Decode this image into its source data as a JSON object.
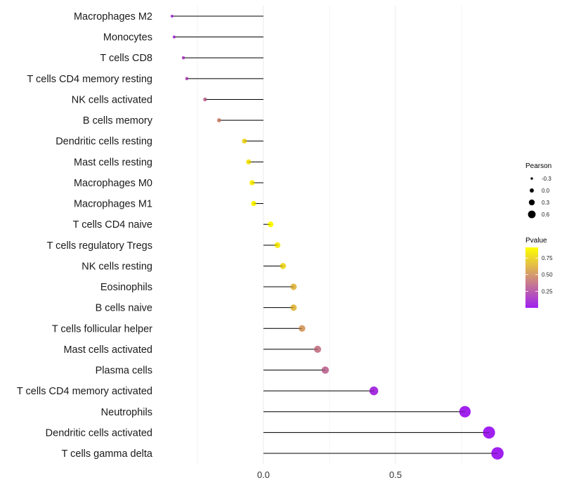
{
  "chart_data": {
    "type": "lollipop",
    "title": "",
    "xlabel": "",
    "ylabel": "",
    "xlim": [
      -0.39,
      1.0
    ],
    "xticks": [
      0.0,
      0.5
    ],
    "xtick_labels": [
      "0.0",
      "0.5"
    ],
    "grid": true,
    "categories": [
      "Macrophages M2",
      "Monocytes",
      "T cells CD8",
      "T cells CD4 memory resting",
      "NK cells activated",
      "B cells memory",
      "Dendritic cells resting",
      "Mast cells resting",
      "Macrophages M0",
      "Macrophages M1",
      "T cells CD4 naive",
      "T cells regulatory  Tregs",
      "NK cells resting",
      "Eosinophils",
      "B cells naive",
      "T cells follicular helper",
      "Mast cells activated",
      "Plasma cells",
      "T cells CD4 memory activated",
      "Neutrophils",
      "Dendritic cells activated",
      "T cells gamma delta"
    ],
    "values": [
      -0.346,
      -0.338,
      -0.303,
      -0.29,
      -0.221,
      -0.168,
      -0.072,
      -0.056,
      -0.043,
      -0.037,
      0.027,
      0.053,
      0.074,
      0.114,
      0.114,
      0.146,
      0.205,
      0.234,
      0.418,
      0.763,
      0.854,
      0.886
    ],
    "pvalues": [
      0.1,
      0.1,
      0.17,
      0.2,
      0.33,
      0.45,
      0.75,
      0.8,
      0.85,
      0.87,
      0.9,
      0.83,
      0.75,
      0.63,
      0.63,
      0.52,
      0.38,
      0.33,
      0.06,
      0.01,
      0.002,
      0.001
    ],
    "legend_size": {
      "title": "Pearson",
      "labels": [
        "-0.3",
        "0.0",
        "0.3",
        "0.6"
      ],
      "values": [
        -0.3,
        0.0,
        0.3,
        0.6
      ]
    },
    "legend_color": {
      "title": "Pvalue",
      "labels": [
        "0.75",
        "0.50",
        "0.25"
      ],
      "values": [
        0.75,
        0.5,
        0.25
      ],
      "range": [
        0,
        0.91
      ],
      "low_color": "#A020F0",
      "high_color": "#FFFF00"
    },
    "legend_placement": "right"
  }
}
